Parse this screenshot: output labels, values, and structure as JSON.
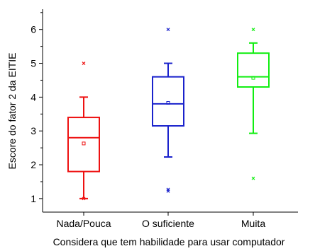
{
  "chart_data": {
    "type": "box",
    "xlabel": "Considera que tem habilidade para usar computador",
    "ylabel": "Escore do fator 2 da EITIE",
    "ylim": [
      0.6,
      6.6
    ],
    "yticks": [
      1,
      2,
      3,
      4,
      5,
      6
    ],
    "categories": [
      "Nada/Pouca",
      "O suficiente",
      "Muita"
    ],
    "series": [
      {
        "color": "#ee1111",
        "whisker_low": 1.0,
        "q1": 1.8,
        "median": 2.8,
        "q3": 3.4,
        "whisker_high": 4.0,
        "mean": 2.63,
        "outliers": [
          5.0,
          1.0
        ]
      },
      {
        "color": "#1a22cc",
        "whisker_low": 2.23,
        "q1": 3.15,
        "median": 3.8,
        "q3": 4.6,
        "whisker_high": 5.0,
        "mean": 3.83,
        "outliers": [
          6.0,
          1.27,
          1.22
        ]
      },
      {
        "color": "#11ee11",
        "whisker_low": 2.93,
        "q1": 4.3,
        "median": 4.6,
        "q3": 5.3,
        "whisker_high": 5.6,
        "mean": 4.57,
        "outliers": [
          6.0,
          1.6
        ]
      }
    ],
    "grid": false,
    "legend": "none"
  }
}
